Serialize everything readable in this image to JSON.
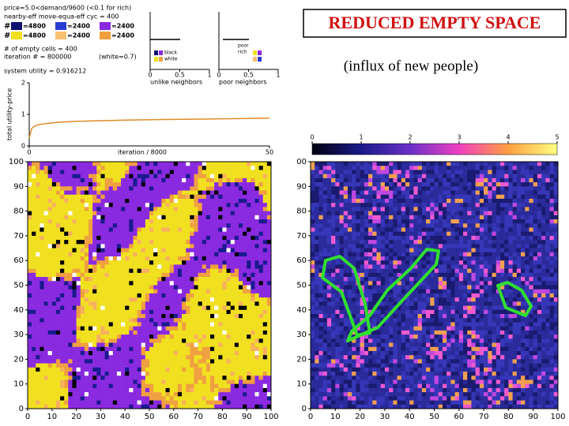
{
  "title": "REDUCED EMPTY SPACE",
  "subtitle": "(influx of new people)",
  "info": {
    "lines": [
      "price=5.0<demand/9600 (<0.1 for rich)",
      "nearby-eff  move-equa-eff cyc = 400"
    ],
    "legend_rows": [
      {
        "lead": "#",
        "items": [
          "=4800",
          "=2400",
          "=2400"
        ]
      },
      {
        "lead": "#",
        "items": [
          "=4800",
          "=2400",
          "=2400"
        ]
      }
    ],
    "empty_cells": "# of empty cells = 400",
    "iteration": "iteration # = 800000",
    "white_note": "(white=0.7)",
    "system_utility": "system utility = 0.916212"
  },
  "histograms": [
    {
      "label": "unlike neighbors",
      "legend": [
        "black",
        "white"
      ],
      "xticks": [
        0,
        0.5,
        1
      ]
    },
    {
      "label": "poor neighbors",
      "legend": [
        "poor",
        "rich"
      ],
      "xticks": [
        0,
        0.5,
        1
      ]
    }
  ],
  "utility_chart": {
    "type": "line",
    "ylabel": "total utility-price",
    "xlabel": "iteration / 8000",
    "x": [
      0,
      0.5,
      1,
      2,
      4,
      6,
      8,
      10,
      15,
      20,
      25,
      30,
      35,
      40,
      45,
      50
    ],
    "values": [
      0.25,
      0.55,
      0.62,
      0.68,
      0.72,
      0.75,
      0.77,
      0.78,
      0.8,
      0.82,
      0.83,
      0.84,
      0.85,
      0.86,
      0.87,
      0.88
    ],
    "color": "#e08a2a",
    "xlim": [
      0,
      50
    ],
    "ylim": [
      0,
      2
    ],
    "xticks": [
      0,
      50
    ],
    "yticks": [
      0,
      1,
      2
    ]
  },
  "left_map": {
    "xlim": [
      0,
      100
    ],
    "ylim": [
      0,
      100
    ],
    "xticks": [
      0,
      10,
      20,
      30,
      40,
      50,
      60,
      70,
      80,
      90,
      100
    ],
    "yticks": [
      0,
      10,
      20,
      30,
      40,
      50,
      60,
      70,
      80,
      90,
      100
    ]
  },
  "right_map": {
    "xlim": [
      0,
      100
    ],
    "ylim": [
      0,
      100
    ],
    "xticks": [
      0,
      10,
      20,
      30,
      40,
      50,
      60,
      70,
      80,
      90,
      100
    ],
    "yticks": [
      0,
      10,
      20,
      30,
      40,
      50,
      60,
      70,
      80,
      90,
      {
        "value": 100,
        "label": "00"
      }
    ],
    "colorbar_lim": [
      0,
      5
    ],
    "colorbar_ticks": [
      0,
      1,
      2,
      3,
      4,
      5
    ]
  }
}
